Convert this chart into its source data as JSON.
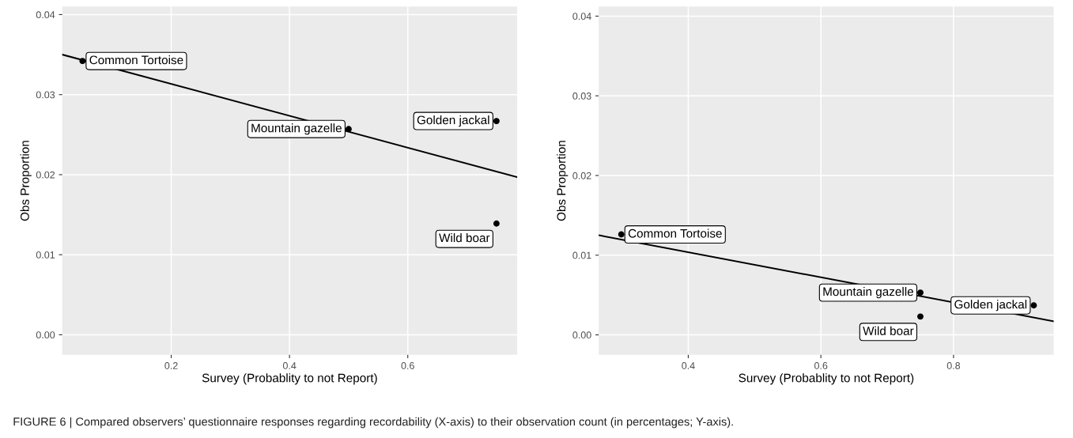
{
  "chart_data": [
    {
      "type": "scatter",
      "xlabel": "Survey (Probablity to not Report)",
      "ylabel": "Obs Proportion",
      "xlim": [
        0.0157,
        0.785
      ],
      "ylim": [
        -0.0025,
        0.041
      ],
      "xticks": [
        0.2,
        0.4,
        0.6
      ],
      "yticks": [
        {
          "value": 0.0,
          "label": "0.00"
        },
        {
          "value": 0.01,
          "label": "0.01"
        },
        {
          "value": 0.02,
          "label": "0.02"
        },
        {
          "value": 0.03,
          "label": "0.03"
        },
        {
          "value": 0.04,
          "label": "0.04"
        }
      ],
      "grid": true,
      "series": [
        {
          "marker": "circle",
          "color": "#000000",
          "x": [
            0.05,
            0.5,
            0.75,
            0.75
          ],
          "values": [
            0.0342,
            0.0257,
            0.0267,
            0.0139
          ]
        },
        {
          "type": "line",
          "marker": "none",
          "color": "#000000",
          "x": [
            0.0157,
            0.785
          ],
          "values": [
            0.035,
            0.0197
          ]
        }
      ],
      "annotations": [
        {
          "text": "Common Tortoise",
          "x": 0.05,
          "y": 0.0342
        },
        {
          "text": "Mountain gazelle",
          "x": 0.5,
          "y": 0.0257
        },
        {
          "text": "Golden jackal",
          "x": 0.75,
          "y": 0.0267
        },
        {
          "text": "Wild boar",
          "x": 0.75,
          "y": 0.0139
        }
      ]
    },
    {
      "type": "scatter",
      "xlabel": "Survey (Probablity to not Report)",
      "ylabel": "Obs Proportion",
      "xlim": [
        0.265,
        0.951
      ],
      "ylim": [
        -0.0025,
        0.0412
      ],
      "xticks": [
        0.4,
        0.6,
        0.8
      ],
      "yticks": [
        {
          "value": 0.0,
          "label": "0.00"
        },
        {
          "value": 0.01,
          "label": "0.01"
        },
        {
          "value": 0.02,
          "label": "0.02"
        },
        {
          "value": 0.03,
          "label": "0.03"
        },
        {
          "value": 0.04,
          "label": "0.04"
        }
      ],
      "grid": true,
      "series": [
        {
          "marker": "circle",
          "color": "#000000",
          "x": [
            0.299,
            0.75,
            0.75,
            0.921
          ],
          "values": [
            0.0126,
            0.0053,
            0.0023,
            0.0037
          ]
        },
        {
          "type": "line",
          "marker": "none",
          "color": "#000000",
          "x": [
            0.265,
            0.951
          ],
          "values": [
            0.0125,
            0.0017
          ]
        }
      ],
      "annotations": [
        {
          "text": "Common Tortoise",
          "x": 0.299,
          "y": 0.0126
        },
        {
          "text": "Mountain gazelle",
          "x": 0.75,
          "y": 0.0053
        },
        {
          "text": "Wild boar",
          "x": 0.75,
          "y": 0.0023
        },
        {
          "text": "Golden jackal",
          "x": 0.921,
          "y": 0.0037
        },
        "FIGURE 6 | Compared observers’ questionnaire responses regarding recordability (X-axis) to their observation count (in percentages; Y-axis)."
      ]
    }
  ]
}
